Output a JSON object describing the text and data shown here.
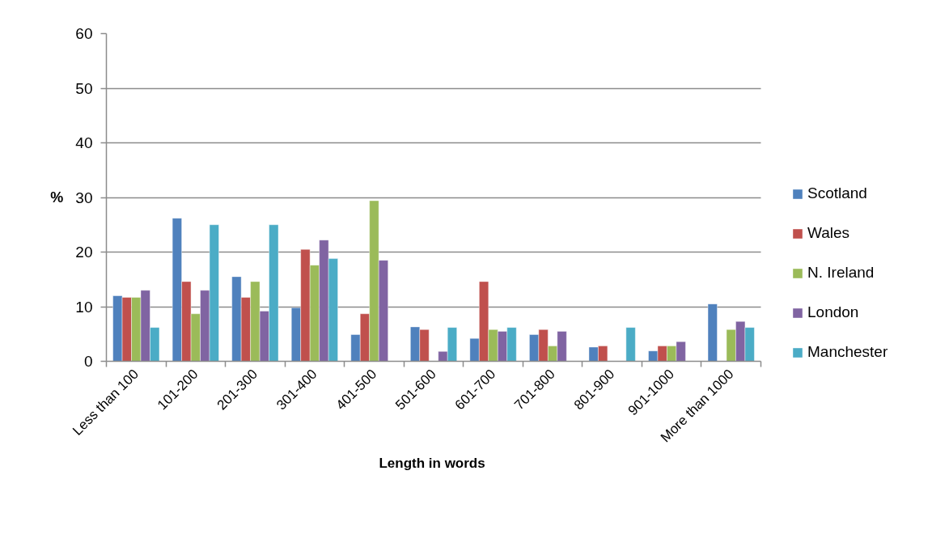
{
  "chart_data": {
    "type": "bar",
    "xlabel": "Length in words",
    "ylabel": "%",
    "categories": [
      "Less than 100",
      "101-200",
      "201-300",
      "301-400",
      "401-500",
      "501-600",
      "601-700",
      "701-800",
      "801-900",
      "901-1000",
      "More than 1000"
    ],
    "series": [
      {
        "name": "Scotland",
        "color": "#4f81bd",
        "values": [
          12.0,
          26.2,
          15.5,
          9.8,
          4.9,
          6.3,
          4.2,
          4.9,
          2.6,
          1.9,
          10.5
        ]
      },
      {
        "name": "Wales",
        "color": "#c0504d",
        "values": [
          11.7,
          14.6,
          11.7,
          20.5,
          8.7,
          5.8,
          14.6,
          5.8,
          2.8,
          2.8,
          null
        ]
      },
      {
        "name": "N. Ireland",
        "color": "#9bbb59",
        "values": [
          11.7,
          8.7,
          14.6,
          17.6,
          29.4,
          null,
          5.8,
          2.8,
          null,
          2.8,
          5.8
        ]
      },
      {
        "name": "London",
        "color": "#8064a2",
        "values": [
          13.0,
          13.0,
          9.2,
          22.2,
          18.5,
          1.8,
          5.5,
          5.5,
          null,
          3.6,
          7.3
        ]
      },
      {
        "name": "Manchester",
        "color": "#4bacc6",
        "values": [
          6.2,
          25.0,
          25.0,
          18.8,
          null,
          6.2,
          6.2,
          null,
          6.2,
          null,
          6.2
        ]
      }
    ],
    "ylim": [
      0,
      60
    ],
    "yticks": [
      0,
      10,
      20,
      30,
      40,
      50,
      60
    ],
    "grid": "y",
    "legend": "right"
  }
}
